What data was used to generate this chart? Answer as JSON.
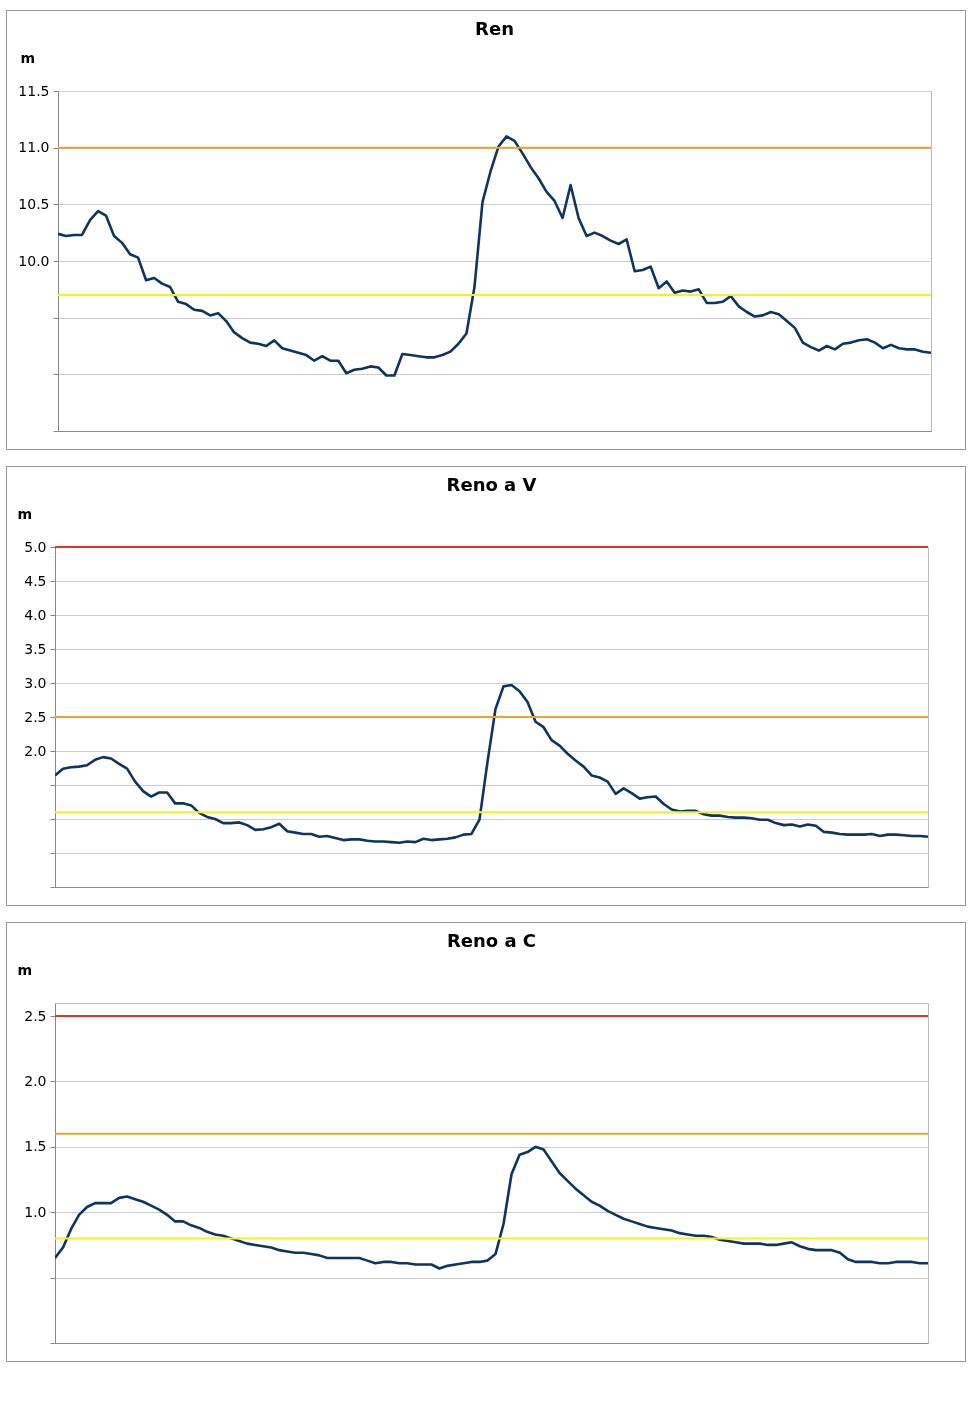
{
  "chart_data": [
    {
      "type": "line",
      "title": "Ren",
      "ylabel": "m",
      "categories": [
        null,
        null,
        null,
        null,
        null,
        null,
        null,
        null,
        null,
        null,
        null,
        null,
        null,
        null,
        null,
        null,
        null,
        null,
        null,
        null,
        null,
        null,
        null,
        null,
        null,
        null,
        null,
        null,
        null,
        null,
        null,
        null,
        null,
        null,
        null,
        null,
        null,
        null,
        null,
        null,
        null,
        null,
        null,
        null,
        null,
        null,
        null,
        null,
        null,
        null,
        null,
        null,
        null,
        null,
        null,
        null,
        null,
        null,
        null,
        null,
        null,
        null,
        null,
        null,
        null,
        null,
        null,
        null,
        null,
        null,
        null,
        null,
        null,
        null,
        null,
        null,
        null,
        null,
        null,
        null,
        null,
        null,
        null,
        null,
        null,
        null,
        null,
        null,
        null,
        null,
        null,
        null,
        null,
        null,
        null,
        null,
        null,
        null,
        null,
        null,
        null,
        null,
        null,
        null,
        null,
        null,
        null,
        null,
        null,
        null
      ],
      "ylim": [
        8.5,
        11.5
      ],
      "yticks": [
        {
          "value": 8.5,
          "label": null
        },
        {
          "value": 9,
          "label": null
        },
        {
          "value": 9.5,
          "label": null
        },
        {
          "value": 10,
          "label": "10.0"
        },
        {
          "value": 10.5,
          "label": "10.5"
        },
        {
          "value": 11,
          "label": "11.0"
        },
        {
          "value": 11.5,
          "label": "11.5"
        }
      ],
      "grid": "y",
      "tick_labels": "y",
      "ref_lines": [
        {
          "axis": "y",
          "value": 11.0,
          "label": null,
          "color": "#f0a030"
        },
        {
          "axis": "y",
          "value": 9.7,
          "label": null,
          "color": "#f2f224"
        }
      ],
      "series": [
        {
          "color": "#0e3461",
          "values": [
            10.24,
            10.22,
            10.23,
            10.23,
            10.36,
            10.44,
            10.4,
            10.22,
            10.16,
            10.06,
            10.03,
            9.83,
            9.85,
            9.8,
            9.77,
            9.64,
            9.62,
            9.57,
            9.56,
            9.52,
            9.54,
            9.47,
            9.37,
            9.32,
            9.28,
            9.27,
            9.25,
            9.3,
            9.23,
            9.21,
            9.19,
            9.17,
            9.12,
            9.16,
            9.12,
            9.12,
            9.01,
            9.04,
            9.05,
            9.07,
            9.06,
            8.99,
            8.99,
            9.18,
            9.17,
            9.16,
            9.15,
            9.15,
            9.17,
            9.2,
            9.27,
            9.36,
            9.77,
            10.52,
            10.79,
            11.01,
            11.1,
            11.06,
            10.95,
            10.83,
            10.73,
            10.61,
            10.53,
            10.38,
            10.67,
            10.38,
            10.22,
            10.25,
            10.22,
            10.18,
            10.15,
            10.19,
            9.91,
            9.92,
            9.95,
            9.76,
            9.82,
            9.72,
            9.74,
            9.73,
            9.75,
            9.63,
            9.63,
            9.64,
            9.69,
            9.6,
            9.55,
            9.51,
            9.52,
            9.55,
            9.53,
            9.47,
            9.41,
            9.28,
            9.24,
            9.21,
            9.25,
            9.22,
            9.27,
            9.28,
            9.3,
            9.31,
            9.28,
            9.23,
            9.26,
            9.23,
            9.22,
            9.22,
            9.2,
            9.19
          ]
        }
      ]
    },
    {
      "type": "line",
      "title": "Reno a V",
      "ylabel": "m",
      "categories": [
        null,
        null,
        null,
        null,
        null,
        null,
        null,
        null,
        null,
        null,
        null,
        null,
        null,
        null,
        null,
        null,
        null,
        null,
        null,
        null,
        null,
        null,
        null,
        null,
        null,
        null,
        null,
        null,
        null,
        null,
        null,
        null,
        null,
        null,
        null,
        null,
        null,
        null,
        null,
        null,
        null,
        null,
        null,
        null,
        null,
        null,
        null,
        null,
        null,
        null,
        null,
        null,
        null,
        null,
        null,
        null,
        null,
        null,
        null,
        null,
        null,
        null,
        null,
        null,
        null,
        null,
        null,
        null,
        null,
        null,
        null,
        null,
        null,
        null,
        null,
        null,
        null,
        null,
        null,
        null,
        null,
        null,
        null,
        null,
        null,
        null,
        null,
        null,
        null,
        null,
        null,
        null,
        null,
        null,
        null,
        null,
        null,
        null,
        null,
        null,
        null,
        null,
        null,
        null,
        null,
        null,
        null,
        null,
        null,
        null
      ],
      "ylim": [
        0,
        5
      ],
      "yticks": [
        {
          "value": 0,
          "label": null
        },
        {
          "value": 0.5,
          "label": null
        },
        {
          "value": 1,
          "label": null
        },
        {
          "value": 1.5,
          "label": null
        },
        {
          "value": 2,
          "label": "2.0"
        },
        {
          "value": 2.5,
          "label": "2.5"
        },
        {
          "value": 3,
          "label": "3.0"
        },
        {
          "value": 3.5,
          "label": "3.5"
        },
        {
          "value": 4,
          "label": "4.0"
        },
        {
          "value": 4.5,
          "label": "4.5"
        },
        {
          "value": 5,
          "label": "5.0"
        }
      ],
      "grid": "y",
      "tick_labels": "y",
      "ref_lines": [
        {
          "axis": "y",
          "value": 5.0,
          "label": null,
          "color": "#e8322a"
        },
        {
          "axis": "y",
          "value": 2.5,
          "label": null,
          "color": "#f0a030"
        },
        {
          "axis": "y",
          "value": 1.1,
          "label": null,
          "color": "#f2f224"
        }
      ],
      "series": [
        {
          "color": "#0e3461",
          "values": [
            1.64,
            1.74,
            1.76,
            1.77,
            1.79,
            1.87,
            1.91,
            1.89,
            1.81,
            1.74,
            1.55,
            1.41,
            1.33,
            1.39,
            1.39,
            1.23,
            1.23,
            1.2,
            1.09,
            1.03,
            1.0,
            0.94,
            0.94,
            0.95,
            0.91,
            0.84,
            0.85,
            0.88,
            0.93,
            0.82,
            0.8,
            0.78,
            0.78,
            0.74,
            0.75,
            0.72,
            0.69,
            0.7,
            0.7,
            0.68,
            0.67,
            0.67,
            0.66,
            0.65,
            0.67,
            0.66,
            0.71,
            0.69,
            0.7,
            0.71,
            0.73,
            0.77,
            0.78,
            0.99,
            1.84,
            2.62,
            2.95,
            2.97,
            2.88,
            2.72,
            2.43,
            2.35,
            2.16,
            2.08,
            1.96,
            1.86,
            1.77,
            1.64,
            1.61,
            1.55,
            1.37,
            1.45,
            1.38,
            1.3,
            1.32,
            1.33,
            1.22,
            1.14,
            1.11,
            1.12,
            1.12,
            1.07,
            1.05,
            1.05,
            1.03,
            1.02,
            1.02,
            1.01,
            0.99,
            0.99,
            0.94,
            0.91,
            0.92,
            0.89,
            0.92,
            0.9,
            0.81,
            0.8,
            0.78,
            0.77,
            0.77,
            0.77,
            0.78,
            0.75,
            0.77,
            0.77,
            0.76,
            0.75,
            0.75,
            0.74
          ]
        }
      ]
    },
    {
      "type": "line",
      "title": "Reno a C",
      "ylabel": "m",
      "categories": [
        null,
        null,
        null,
        null,
        null,
        null,
        null,
        null,
        null,
        null,
        null,
        null,
        null,
        null,
        null,
        null,
        null,
        null,
        null,
        null,
        null,
        null,
        null,
        null,
        null,
        null,
        null,
        null,
        null,
        null,
        null,
        null,
        null,
        null,
        null,
        null,
        null,
        null,
        null,
        null,
        null,
        null,
        null,
        null,
        null,
        null,
        null,
        null,
        null,
        null,
        null,
        null,
        null,
        null,
        null,
        null,
        null,
        null,
        null,
        null,
        null,
        null,
        null,
        null,
        null,
        null,
        null,
        null,
        null,
        null,
        null,
        null,
        null,
        null,
        null,
        null,
        null,
        null,
        null,
        null,
        null,
        null,
        null,
        null,
        null,
        null,
        null,
        null,
        null,
        null,
        null,
        null,
        null,
        null,
        null,
        null,
        null,
        null,
        null,
        null,
        null,
        null,
        null,
        null,
        null,
        null,
        null,
        null,
        null,
        null
      ],
      "ylim": [
        0,
        2.6
      ],
      "yticks": [
        {
          "value": 0,
          "label": null
        },
        {
          "value": 0.5,
          "label": null
        },
        {
          "value": 1,
          "label": "1.0"
        },
        {
          "value": 1.5,
          "label": "1.5"
        },
        {
          "value": 2,
          "label": "2.0"
        },
        {
          "value": 2.5,
          "label": "2.5"
        }
      ],
      "grid": "y",
      "tick_labels": "y",
      "ref_lines": [
        {
          "axis": "y",
          "value": 2.5,
          "label": null,
          "color": "#e8322a"
        },
        {
          "axis": "y",
          "value": 1.6,
          "label": null,
          "color": "#f0a030"
        },
        {
          "axis": "y",
          "value": 0.8,
          "label": null,
          "color": "#f2f224"
        }
      ],
      "series": [
        {
          "color": "#0e3461",
          "values": [
            0.65,
            0.73,
            0.87,
            0.98,
            1.04,
            1.07,
            1.07,
            1.07,
            1.11,
            1.12,
            1.1,
            1.08,
            1.05,
            1.02,
            0.98,
            0.93,
            0.93,
            0.9,
            0.88,
            0.85,
            0.83,
            0.82,
            0.8,
            0.78,
            0.76,
            0.75,
            0.74,
            0.73,
            0.71,
            0.7,
            0.69,
            0.69,
            0.68,
            0.67,
            0.65,
            0.65,
            0.65,
            0.65,
            0.65,
            0.63,
            0.61,
            0.62,
            0.62,
            0.61,
            0.61,
            0.6,
            0.6,
            0.6,
            0.57,
            0.59,
            0.6,
            0.61,
            0.62,
            0.62,
            0.63,
            0.68,
            0.91,
            1.29,
            1.44,
            1.46,
            1.5,
            1.48,
            1.39,
            1.3,
            1.24,
            1.18,
            1.13,
            1.08,
            1.05,
            1.01,
            0.98,
            0.95,
            0.93,
            0.91,
            0.89,
            0.88,
            0.87,
            0.86,
            0.84,
            0.83,
            0.82,
            0.82,
            0.81,
            0.79,
            0.78,
            0.77,
            0.76,
            0.76,
            0.76,
            0.75,
            0.75,
            0.76,
            0.77,
            0.74,
            0.72,
            0.71,
            0.71,
            0.71,
            0.69,
            0.64,
            0.62,
            0.62,
            0.62,
            0.61,
            0.61,
            0.62,
            0.62,
            0.62,
            0.61,
            0.61
          ]
        }
      ]
    }
  ]
}
